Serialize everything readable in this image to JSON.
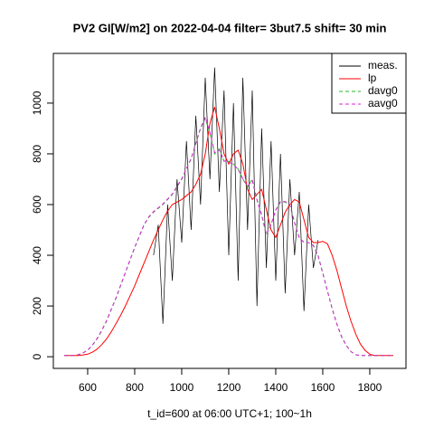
{
  "chart_data": {
    "type": "line",
    "title": "PV2 GI[W/m2] on 2022-04-04 filter= 3but7.5 shift= 30 min",
    "x_label": "t_id=600 at 06:00 UTC+1; 100~1h",
    "x": [
      500,
      520,
      540,
      560,
      580,
      600,
      620,
      640,
      660,
      680,
      700,
      720,
      740,
      760,
      780,
      800,
      820,
      840,
      860,
      880,
      900,
      920,
      940,
      960,
      980,
      1000,
      1020,
      1040,
      1060,
      1080,
      1100,
      1120,
      1140,
      1160,
      1180,
      1200,
      1220,
      1240,
      1260,
      1280,
      1300,
      1320,
      1340,
      1360,
      1380,
      1400,
      1420,
      1440,
      1460,
      1480,
      1500,
      1520,
      1540,
      1560,
      1580,
      1600,
      1620,
      1640,
      1660,
      1680,
      1700,
      1720,
      1740,
      1760,
      1780,
      1800,
      1820,
      1840,
      1860,
      1880,
      1900
    ],
    "series": [
      {
        "name": "meas.",
        "color": "#000000",
        "dashed": false,
        "values": [
          null,
          null,
          null,
          null,
          null,
          null,
          null,
          null,
          null,
          null,
          null,
          null,
          null,
          null,
          null,
          null,
          null,
          null,
          null,
          400,
          520,
          130,
          600,
          300,
          700,
          450,
          850,
          500,
          950,
          600,
          1100,
          700,
          1140,
          650,
          1050,
          400,
          1000,
          300,
          1100,
          500,
          1050,
          200,
          900,
          350,
          850,
          300,
          800,
          250,
          700,
          400,
          650,
          180,
          600,
          350,
          460,
          null,
          null,
          null,
          null,
          null,
          null,
          null,
          null,
          null,
          null,
          null,
          null,
          null,
          null,
          null,
          null
        ]
      },
      {
        "name": "lp",
        "color": "#ff0000",
        "dashed": false,
        "values": [
          5,
          5,
          5,
          5,
          7,
          10,
          18,
          30,
          48,
          70,
          98,
          130,
          163,
          200,
          240,
          280,
          325,
          370,
          415,
          460,
          500,
          540,
          575,
          600,
          610,
          620,
          635,
          650,
          680,
          720,
          800,
          920,
          985,
          900,
          800,
          760,
          800,
          815,
          760,
          660,
          620,
          640,
          660,
          580,
          500,
          470,
          520,
          570,
          600,
          620,
          610,
          540,
          470,
          450,
          450,
          455,
          445,
          400,
          340,
          270,
          200,
          140,
          90,
          50,
          25,
          10,
          5,
          5,
          5,
          5,
          5
        ]
      },
      {
        "name": "davg0",
        "color": "#22bb22",
        "dashed": true,
        "values": [
          5,
          5,
          5,
          8,
          15,
          25,
          45,
          70,
          103,
          140,
          185,
          230,
          280,
          330,
          380,
          430,
          475,
          520,
          550,
          570,
          585,
          600,
          620,
          640,
          670,
          700,
          740,
          780,
          840,
          900,
          940,
          880,
          800,
          820,
          770,
          770,
          760,
          740,
          700,
          670,
          700,
          620,
          560,
          480,
          520,
          580,
          610,
          610,
          600,
          530,
          470,
          450,
          450,
          440,
          400,
          330,
          260,
          190,
          130,
          80,
          45,
          20,
          8,
          5,
          5,
          5,
          5,
          5,
          5,
          5,
          5
        ]
      },
      {
        "name": "aavg0",
        "color": "#dd22dd",
        "dashed": true,
        "values": [
          5,
          5,
          5,
          8,
          15,
          26,
          46,
          72,
          105,
          142,
          187,
          232,
          282,
          332,
          382,
          432,
          477,
          522,
          552,
          572,
          587,
          602,
          622,
          642,
          672,
          702,
          742,
          782,
          842,
          902,
          945,
          885,
          805,
          815,
          772,
          768,
          758,
          738,
          702,
          672,
          695,
          618,
          558,
          482,
          522,
          578,
          612,
          612,
          598,
          528,
          468,
          452,
          450,
          438,
          398,
          328,
          258,
          188,
          128,
          78,
          44,
          20,
          8,
          5,
          5,
          5,
          5,
          5,
          5,
          5,
          5
        ]
      }
    ],
    "xlim": [
      454,
      1954
    ],
    "ylim": [
      -46,
      1196
    ],
    "xticks": [
      600,
      800,
      1000,
      1200,
      1400,
      1600,
      1800
    ],
    "yticks": [
      0,
      200,
      400,
      600,
      800,
      1000
    ],
    "legend": "top-right"
  }
}
